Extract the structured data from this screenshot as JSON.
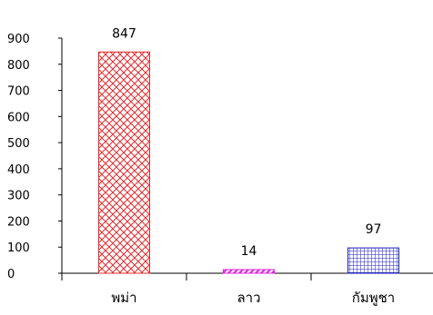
{
  "chart_data": {
    "type": "bar",
    "categories": [
      "พม่า",
      "ลาว",
      "กัมพูชา"
    ],
    "values": [
      847,
      14,
      97
    ],
    "data_labels": [
      "847",
      "14",
      "97"
    ],
    "ylim": [
      0,
      900
    ],
    "yticks": [
      "0",
      "100",
      "200",
      "300",
      "400",
      "500",
      "600",
      "700",
      "800",
      "900"
    ],
    "grid": false,
    "legend": "none",
    "bar_styles": [
      {
        "pattern": "crosshatch-diagonal",
        "color": "#e8282c"
      },
      {
        "pattern": "diagonal-stripes",
        "color": "#e020e0"
      },
      {
        "pattern": "grid",
        "color": "#1e22b8"
      }
    ]
  }
}
